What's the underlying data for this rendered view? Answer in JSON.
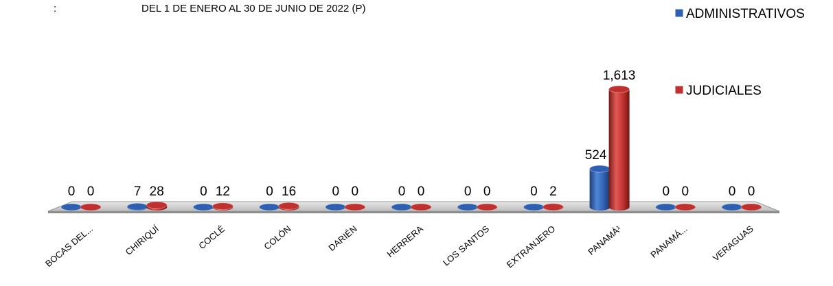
{
  "header": {
    "colon": ":",
    "subtitle": "DEL 1 DE ENERO  AL 30 DE JUNIO DE 2022 (P)"
  },
  "legend": {
    "placement": "top-right",
    "items": [
      {
        "label": "ADMINISTRATIVOS",
        "color": "#2f5fb0"
      },
      {
        "label": "JUDICIALES",
        "color": "#c0302e"
      }
    ]
  },
  "chart_data": {
    "type": "bar",
    "style": "3d-cylinder",
    "categories": [
      "BOCAS DEL...",
      "CHIRIQUÍ",
      "COCLÉ",
      "COLÓN",
      "DARIÉN",
      "HERRERA",
      "LOS SANTOS",
      "EXTRANJERO",
      "PANAMÁ¹",
      "PANAMÁ...",
      "VERAGUAS"
    ],
    "series": [
      {
        "name": "ADMINISTRATIVOS",
        "color": "#2f5fb0",
        "values": [
          0,
          7,
          0,
          0,
          0,
          0,
          0,
          0,
          524,
          0,
          0
        ]
      },
      {
        "name": "JUDICIALES",
        "color": "#c0302e",
        "values": [
          0,
          28,
          12,
          16,
          0,
          0,
          0,
          2,
          1613,
          0,
          0
        ]
      }
    ],
    "data_labels": {
      "ADMINISTRATIVOS": [
        "0",
        "7",
        "0",
        "0",
        "0",
        "0",
        "0",
        "0",
        "524",
        "0",
        "0"
      ],
      "JUDICIALES": [
        "0",
        "28",
        "12",
        "16",
        "0",
        "0",
        "0",
        "2",
        "1,613",
        "0",
        "0"
      ]
    },
    "grid": false,
    "ylim": [
      0,
      1613
    ]
  }
}
